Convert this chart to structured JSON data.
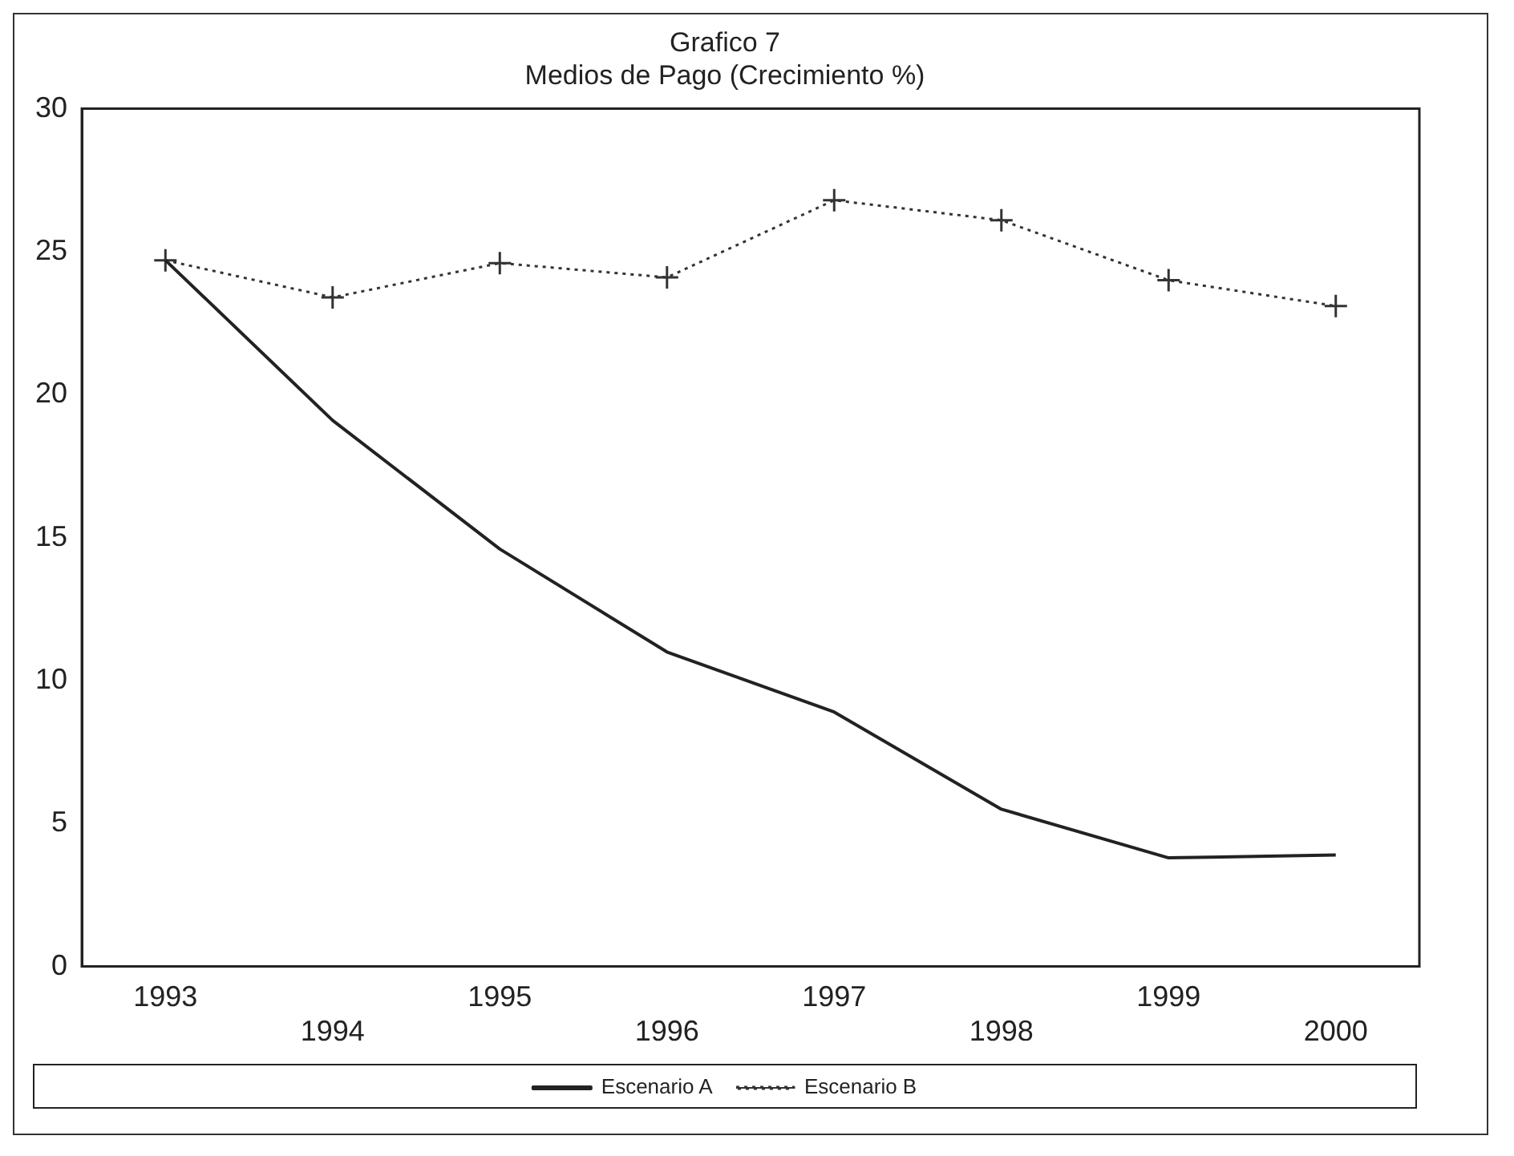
{
  "chart_data": {
    "type": "line",
    "title": "Grafico 7",
    "subtitle": "Medios de Pago (Crecimiento %)",
    "categories": [
      "1993",
      "1994",
      "1995",
      "1996",
      "1997",
      "1998",
      "1999",
      "2000"
    ],
    "series": [
      {
        "name": "Escenario A",
        "color": "#222222",
        "values": [
          24.7,
          19.1,
          14.6,
          11.0,
          8.9,
          5.5,
          3.8,
          3.9
        ],
        "marker": "none",
        "line_style": "solid"
      },
      {
        "name": "Escenario B",
        "color": "#333333",
        "values": [
          24.7,
          23.4,
          24.6,
          24.1,
          26.8,
          26.1,
          24.0,
          23.1
        ],
        "marker": "cross",
        "line_style": "dotted"
      }
    ],
    "ylim": [
      0,
      30
    ],
    "yticks": [
      0,
      5,
      10,
      15,
      20,
      25,
      30
    ],
    "grid": false,
    "legend": "bottom"
  }
}
